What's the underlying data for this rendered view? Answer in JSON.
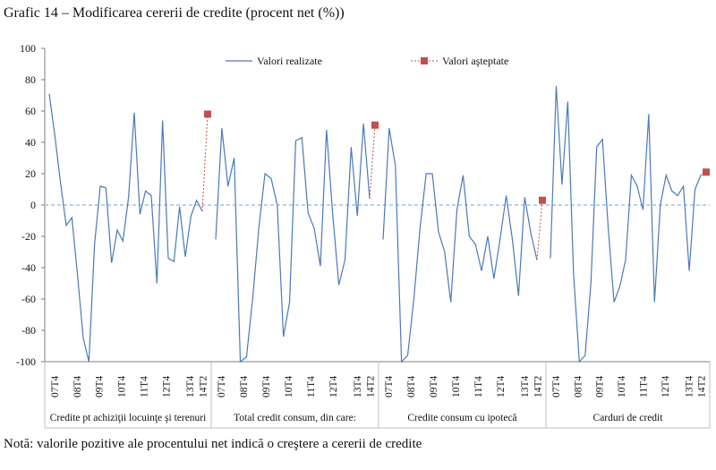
{
  "title": "Grafic 14 – Modificarea cererii de credite (procent net (%))",
  "note": "Notă: valorile pozitive ale procentului net indică o creştere a cererii de credite",
  "colors": {
    "realized": "#4a7ab8",
    "expected": "#c0504d",
    "zero_line": "#9dc3e6",
    "grid": "#7f7f7f"
  },
  "chart_data": {
    "type": "line",
    "title": "Grafic 14 – Modificarea cererii de credite (procent net (%))",
    "ylim": [
      -100,
      100
    ],
    "yticks": [
      100,
      80,
      60,
      40,
      20,
      0,
      -20,
      -40,
      -60,
      -80,
      -100
    ],
    "legend": {
      "placement": "top",
      "entries": [
        "Valori realizate",
        "Valori aşteptate"
      ]
    },
    "quarter_ticks": [
      "07T4",
      "08T4",
      "09T4",
      "10T4",
      "11T4",
      "12T4",
      "13T4",
      "14T2"
    ],
    "groups": [
      {
        "label": "Credite pt achiziţii locuinţe şi terenuri",
        "realized": [
          71,
          44,
          14,
          -13,
          -8,
          -45,
          -85,
          -100,
          -25,
          12,
          11,
          -37,
          -16,
          -23,
          5,
          59,
          -6,
          9,
          6,
          -50,
          54,
          -34,
          -36,
          -1,
          -33,
          -7,
          3,
          -4
        ],
        "expected": 58
      },
      {
        "label": "Total credit consum, din care:",
        "realized": [
          -22,
          49,
          12,
          30,
          -100,
          -97,
          -60,
          -15,
          20,
          17,
          0,
          -84,
          -62,
          41,
          43,
          -5,
          -15,
          -39,
          48,
          -6,
          -51,
          -35,
          37,
          -7,
          52,
          4
        ],
        "expected": 51
      },
      {
        "label": "Credite consum cu ipotecă",
        "realized": [
          -22,
          49,
          25,
          -100,
          -96,
          -60,
          -15,
          20,
          20,
          -17,
          -30,
          -62,
          -3,
          19,
          -20,
          -25,
          -42,
          -20,
          -47,
          -22,
          6,
          -22,
          -58,
          5,
          -18,
          -35
        ],
        "expected": 3
      },
      {
        "label": "Carduri de credit",
        "realized": [
          -34,
          76,
          13,
          66,
          -44,
          -100,
          -96,
          -50,
          37,
          42,
          -15,
          -62,
          -52,
          -35,
          19,
          12,
          -3,
          58,
          -62,
          0,
          19,
          9,
          6,
          12,
          -42,
          10,
          19
        ],
        "expected": 21
      }
    ]
  }
}
